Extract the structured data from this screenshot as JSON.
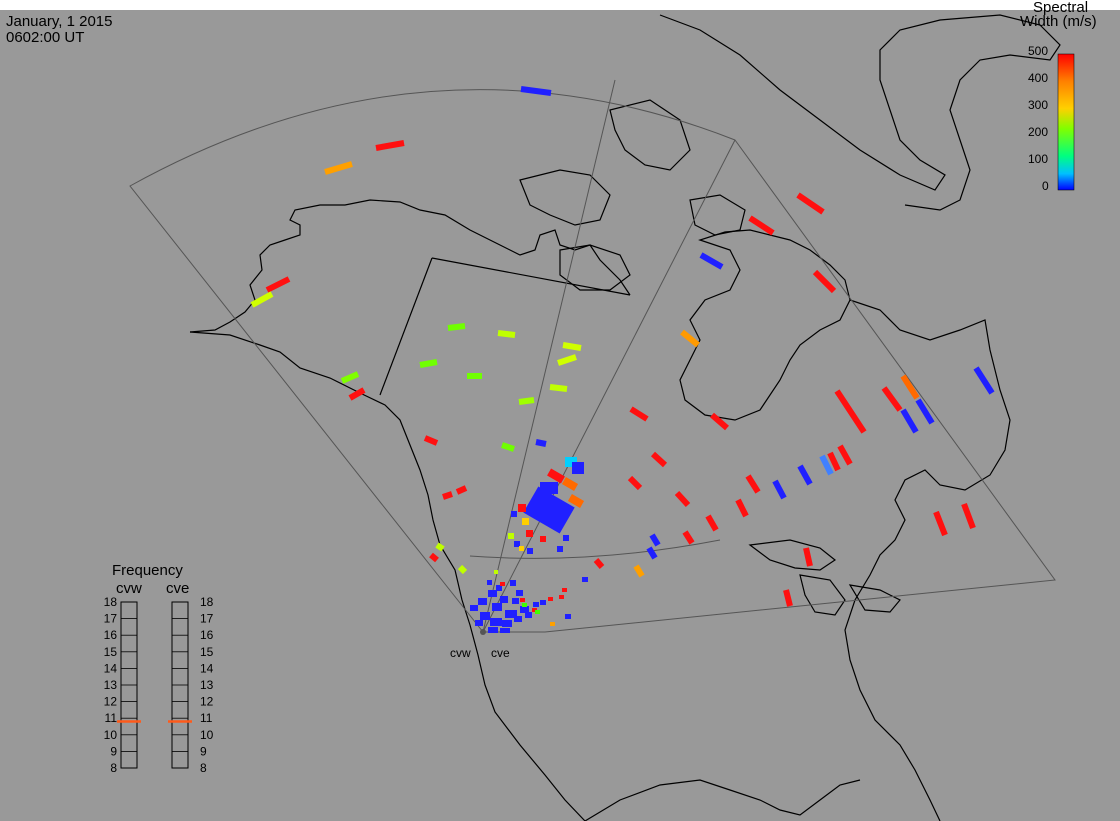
{
  "header": {
    "date": "January, 1 2015",
    "time": "0602:00 UT"
  },
  "colorbar": {
    "title_line1": "Spectral",
    "title_line2": "Width (m/s)",
    "ticks": [
      "500",
      "400",
      "300",
      "200",
      "100",
      "0"
    ],
    "scale_colors": [
      "#ff0000",
      "#ff8000",
      "#ffd000",
      "#80ff00",
      "#00ff80",
      "#00c0ff",
      "#0000ff"
    ]
  },
  "frequency_panel": {
    "title": "Frequency",
    "radar_left": "cvw",
    "radar_right": "cve",
    "scale_labels": [
      "18",
      "17",
      "16",
      "15",
      "14",
      "13",
      "12",
      "11",
      "10",
      "9",
      "8"
    ],
    "cvw_frequency_mhz": 10.8,
    "cve_frequency_mhz": 10.8,
    "indicator_color": "#ff5a1a"
  },
  "radar_labels": {
    "cvw": "cvw",
    "cve": "cve"
  },
  "colors": {
    "background": "#999999",
    "land_outline": "#000000",
    "fov_outline": "#555555"
  }
}
